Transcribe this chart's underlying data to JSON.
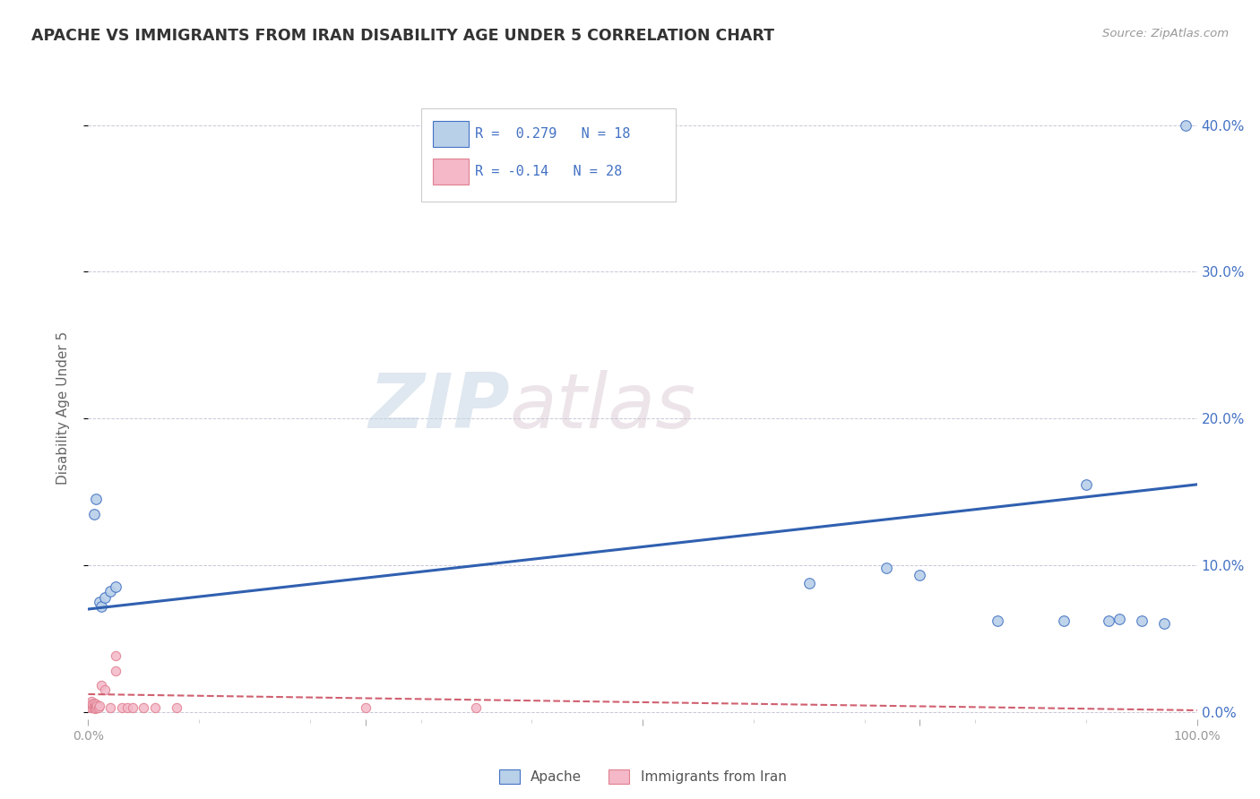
{
  "title": "APACHE VS IMMIGRANTS FROM IRAN DISABILITY AGE UNDER 5 CORRELATION CHART",
  "source": "Source: ZipAtlas.com",
  "ylabel": "Disability Age Under 5",
  "watermark_zip": "ZIP",
  "watermark_atlas": "atlas",
  "blue_label": "Apache",
  "pink_label": "Immigrants from Iran",
  "blue_R": 0.279,
  "blue_N": 18,
  "pink_R": -0.14,
  "pink_N": 28,
  "blue_fill": "#b8d0e8",
  "pink_fill": "#f4b8c8",
  "blue_edge": "#4472c4",
  "pink_edge": "#e08090",
  "blue_line": "#3060b0",
  "pink_line": "#d06070",
  "blue_x": [
    0.005,
    0.007,
    0.01,
    0.012,
    0.015,
    0.02,
    0.025,
    0.65,
    0.72,
    0.75,
    0.82,
    0.88,
    0.9,
    0.92,
    0.93,
    0.95,
    0.97,
    0.99
  ],
  "blue_y": [
    0.135,
    0.145,
    0.075,
    0.072,
    0.078,
    0.082,
    0.085,
    0.088,
    0.098,
    0.093,
    0.062,
    0.062,
    0.155,
    0.062,
    0.063,
    0.062,
    0.06,
    0.4
  ],
  "pink_x": [
    0.001,
    0.002,
    0.003,
    0.003,
    0.004,
    0.004,
    0.005,
    0.005,
    0.006,
    0.006,
    0.007,
    0.007,
    0.008,
    0.009,
    0.01,
    0.012,
    0.015,
    0.02,
    0.025,
    0.025,
    0.03,
    0.035,
    0.04,
    0.05,
    0.06,
    0.08,
    0.25,
    0.35
  ],
  "pink_y": [
    0.005,
    0.003,
    0.005,
    0.007,
    0.003,
    0.005,
    0.003,
    0.006,
    0.002,
    0.004,
    0.003,
    0.005,
    0.004,
    0.003,
    0.004,
    0.018,
    0.015,
    0.003,
    0.038,
    0.028,
    0.003,
    0.003,
    0.003,
    0.003,
    0.003,
    0.003,
    0.003,
    0.003
  ],
  "xlim": [
    0.0,
    1.0
  ],
  "ylim": [
    -0.005,
    0.42
  ],
  "yticks": [
    0.0,
    0.1,
    0.2,
    0.3,
    0.4
  ],
  "ytick_labels": [
    "0.0%",
    "10.0%",
    "20.0%",
    "30.0%",
    "40.0%"
  ],
  "xticks": [
    0.0,
    0.25,
    0.5,
    0.75,
    1.0
  ],
  "xtick_labels": [
    "0.0%",
    "",
    "",
    "",
    "100.0%"
  ],
  "grid_color": "#c8c8d8",
  "bg_color": "#ffffff",
  "title_color": "#333333",
  "axis_label_color": "#666666",
  "tick_color": "#999999",
  "right_tick_color": "#4472c4",
  "legend_text_color": "#4472c4",
  "marker_size": 70,
  "pink_marker_size": 55
}
